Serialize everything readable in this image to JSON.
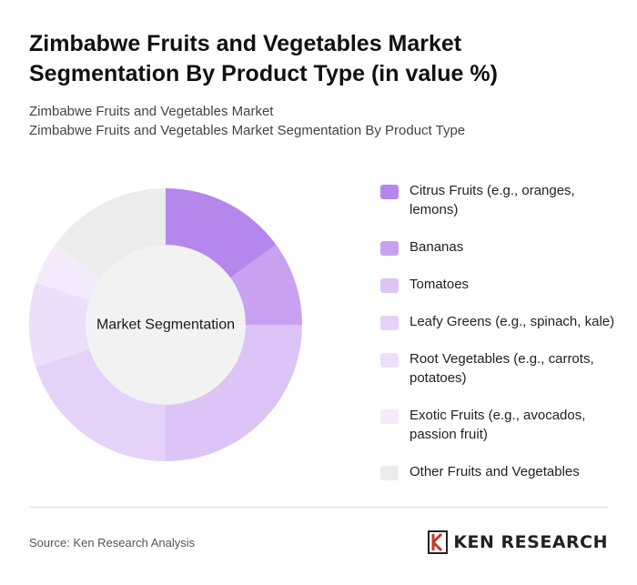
{
  "header": {
    "title": "Zimbabwe Fruits and Vegetables Market Segmentation By Product Type (in value %)",
    "subtitle_line1": "Zimbabwe Fruits and Vegetables Market",
    "subtitle_line2": "Zimbabwe Fruits and Vegetables Market Segmentation By Product Type"
  },
  "chart_data": {
    "type": "pie",
    "variant": "donut",
    "center_label": "Market Segmentation",
    "categories": [
      "Citrus Fruits (e.g., oranges, lemons)",
      "Bananas",
      "Tomatoes",
      "Leafy Greens (e.g., spinach, kale)",
      "Root Vegetables (e.g., carrots, potatoes)",
      "Exotic Fruits (e.g., avocados, passion fruit)",
      "Other Fruits and Vegetables"
    ],
    "values": [
      15,
      10,
      25,
      20,
      10,
      5,
      15
    ],
    "colors": [
      "#b586ec",
      "#c8a1f0",
      "#dcc4f6",
      "#e4d2f8",
      "#ecdffa",
      "#f3ebfc",
      "#ececec"
    ],
    "legend_position": "right"
  },
  "footer": {
    "source": "Source: Ken Research Analysis",
    "brand": "KEN RESEARCH",
    "brand_icon": "ken-research-logo-icon"
  }
}
